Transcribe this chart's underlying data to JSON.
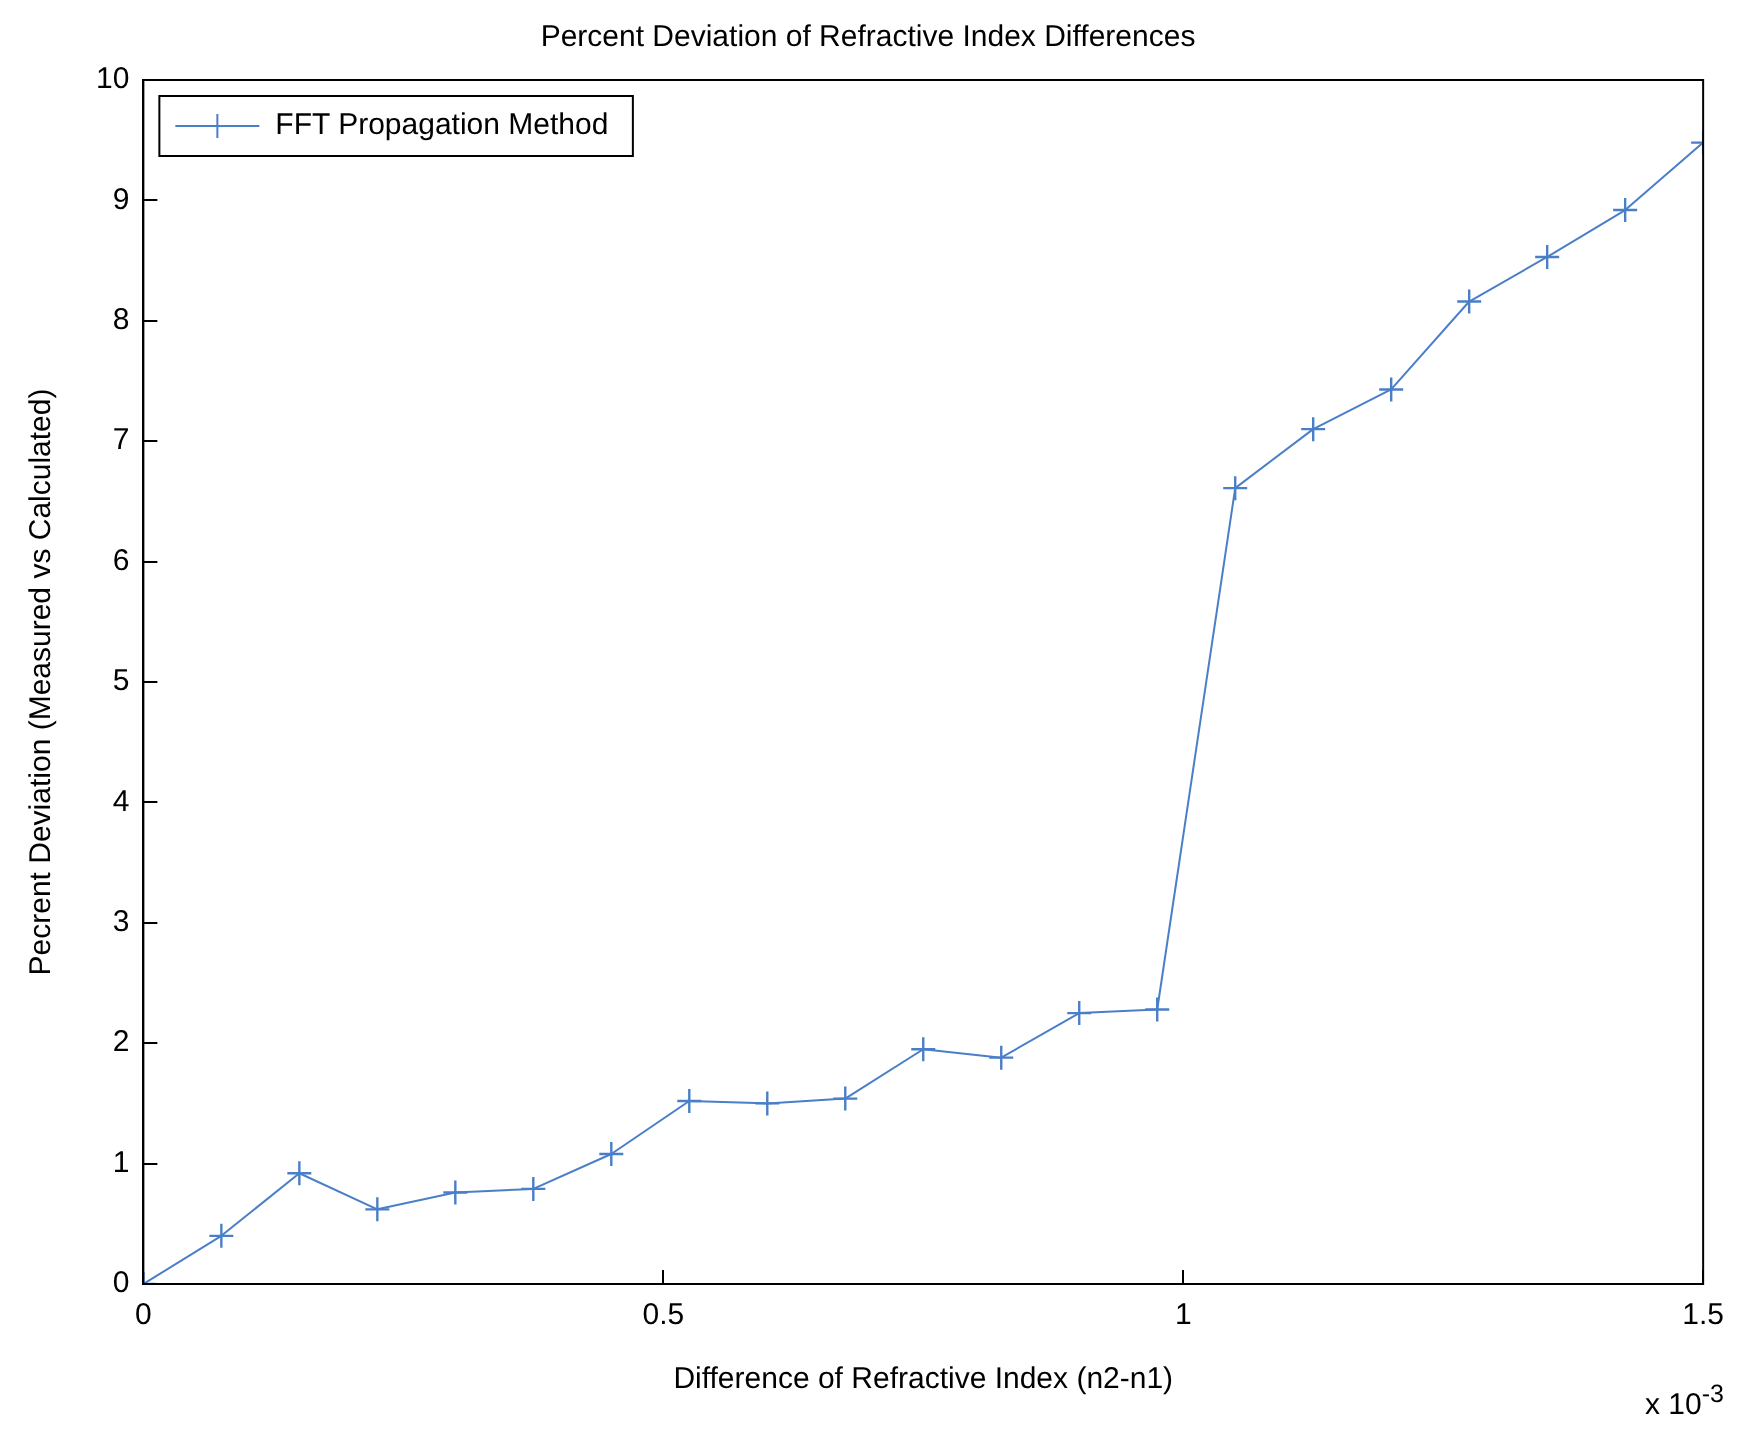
{
  "chart_data": {
    "type": "line",
    "title": "Percent Deviation of Refractive Index Differences",
    "xlabel": "Difference of Refractive Index (n2-n1)",
    "ylabel": "Pecrent Deviation (Measured vs Calculated)",
    "annotations": [
      "x 10$^{-3}$"
    ],
    "x": [
      0,
      0.075,
      0.15,
      0.225,
      0.3,
      0.375,
      0.45,
      0.525,
      0.6,
      0.675,
      0.75,
      0.825,
      0.9,
      0.975,
      1.05,
      1.125,
      1.2,
      1.275,
      1.35,
      1.425,
      1.5
    ],
    "series": [
      {
        "name": "FFT Propagation Method",
        "color": "#4a7fc8",
        "values": [
          0,
          0.4,
          0.92,
          0.62,
          0.76,
          0.79,
          1.08,
          1.52,
          1.5,
          1.54,
          1.95,
          1.88,
          2.25,
          2.28,
          6.61,
          7.1,
          7.43,
          8.16,
          8.53,
          8.92,
          9.48
        ]
      }
    ],
    "xlim": [
      0,
      1.5
    ],
    "xticks": [
      0,
      0.5,
      1,
      1.5
    ],
    "ylim": [
      0,
      10
    ],
    "yticks": [
      0,
      1,
      2,
      3,
      4,
      5,
      6,
      7,
      8,
      9,
      10
    ],
    "grid": false,
    "legend": "top left",
    "marker": "cross",
    "line_style": "solid"
  }
}
